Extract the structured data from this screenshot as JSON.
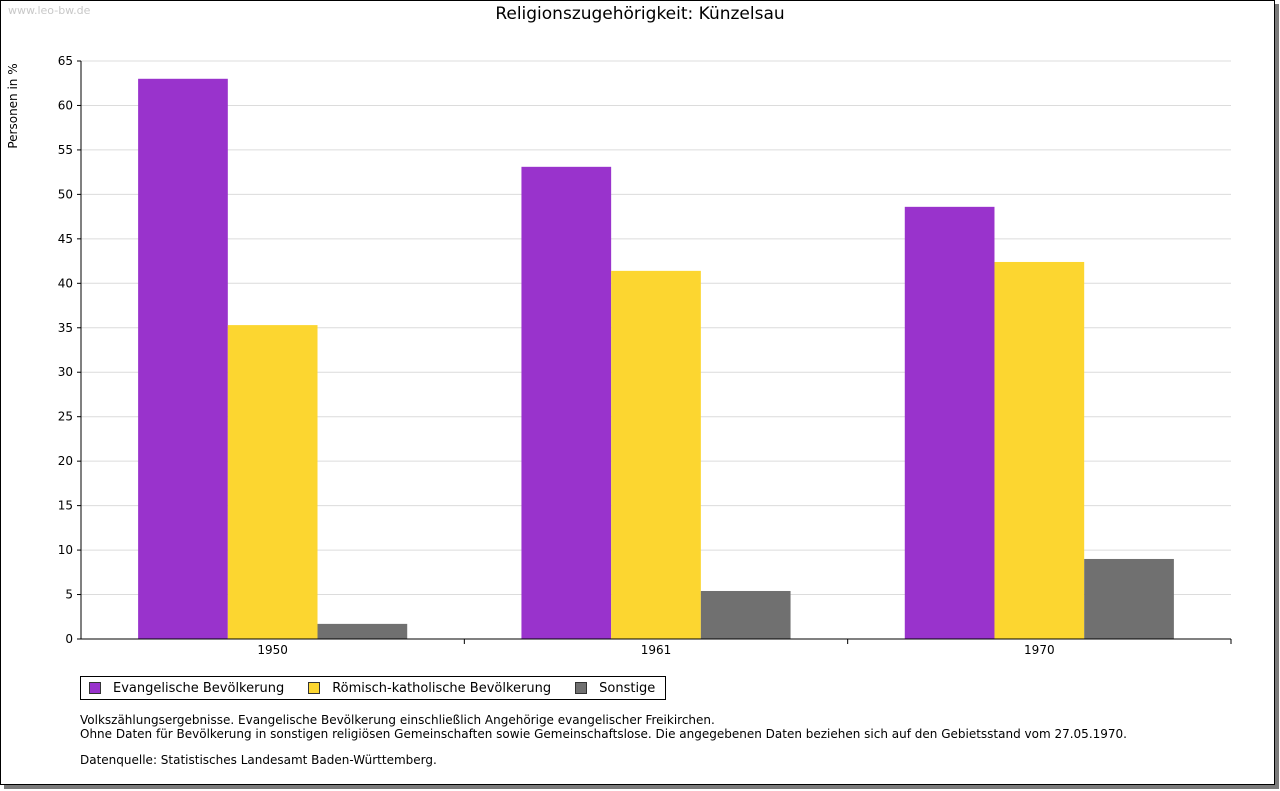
{
  "watermark": "www.leo-bw.de",
  "chart_data": {
    "type": "bar",
    "title": "Religionszugehörigkeit: Künzelsau",
    "xlabel": "",
    "ylabel": "Personen in %",
    "ylim": [
      0,
      65
    ],
    "yticks": [
      0,
      5,
      10,
      15,
      20,
      25,
      30,
      35,
      40,
      45,
      50,
      55,
      60,
      65
    ],
    "grid": true,
    "legend_position": "bottom-left",
    "categories": [
      "1950",
      "1961",
      "1970"
    ],
    "series": [
      {
        "name": "Evangelische Bevölkerung",
        "color": "#9933cc",
        "values": [
          63.0,
          53.1,
          48.6
        ]
      },
      {
        "name": "Römisch-katholische Bevölkerung",
        "color": "#fcd630",
        "values": [
          35.3,
          41.4,
          42.4
        ]
      },
      {
        "name": "Sonstige",
        "color": "#707070",
        "values": [
          1.7,
          5.4,
          9.0
        ]
      }
    ]
  },
  "notes": {
    "line1": "Volkszählungsergebnisse. Evangelische Bevölkerung einschließlich Angehörige evangelischer Freikirchen.",
    "line2": "Ohne Daten für Bevölkerung in sonstigen religiösen Gemeinschaften sowie Gemeinschaftslose. Die angegebenen Daten beziehen sich auf den Gebietsstand vom 27.05.1970.",
    "source": "Datenquelle: Statistisches Landesamt Baden-Württemberg."
  }
}
